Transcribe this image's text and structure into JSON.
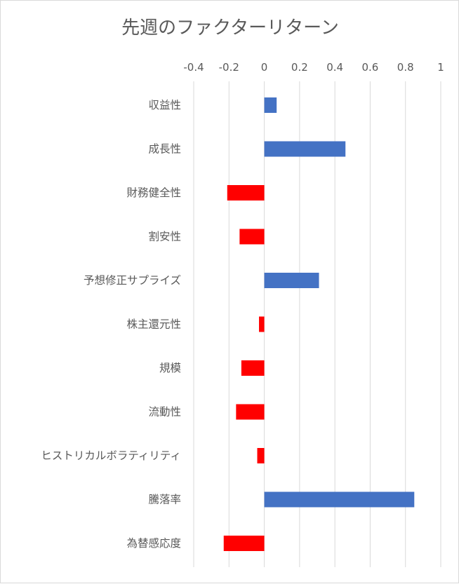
{
  "chart_data": {
    "type": "bar",
    "orientation": "horizontal",
    "title": "先週のファクターリターン",
    "xlabel": "",
    "ylabel": "",
    "xlim": [
      -0.4,
      1
    ],
    "x_ticks": [
      -0.4,
      -0.2,
      0,
      0.2,
      0.4,
      0.6,
      0.8,
      1
    ],
    "x_tick_labels": [
      "-0.4",
      "-0.2",
      "0",
      "0.2",
      "0.4",
      "0.6",
      "0.8",
      "1"
    ],
    "x_axis_position": "top",
    "grid": true,
    "legend": "none",
    "categories": [
      "収益性",
      "成長性",
      "財務健全性",
      "割安性",
      "予想修正サプライズ",
      "株主還元性",
      "規模",
      "流動性",
      "ヒストリカルボラティリティ",
      "騰落率",
      "為替感応度"
    ],
    "values": [
      0.07,
      0.46,
      -0.21,
      -0.14,
      0.31,
      -0.03,
      -0.13,
      -0.16,
      -0.04,
      0.85,
      -0.23
    ],
    "colors": {
      "positive": "#4472c4",
      "negative": "#ff0000",
      "grid": "#d9d9d9",
      "text": "#595959"
    }
  }
}
